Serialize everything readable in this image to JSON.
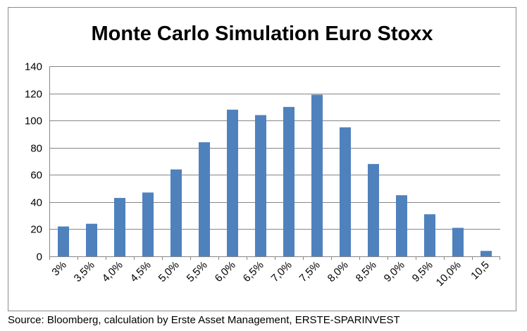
{
  "chart_data": {
    "type": "bar",
    "title": "Monte Carlo Simulation Euro Stoxx",
    "xlabel": "",
    "ylabel": "",
    "categories": [
      "3%",
      "3,5%",
      "4,0%",
      "4,5%",
      "5,0%",
      "5,5%",
      "6,0%",
      "6,5%",
      "7,0%",
      "7,5%",
      "8,0%",
      "8,5%",
      "9,0%",
      "9,5%",
      "10,0%",
      "10,5"
    ],
    "values": [
      22,
      24,
      43,
      47,
      64,
      84,
      108,
      104,
      110,
      119,
      95,
      68,
      45,
      31,
      21,
      4
    ],
    "ylim": [
      0,
      140
    ],
    "yticks": [
      0,
      20,
      40,
      60,
      80,
      100,
      120,
      140
    ],
    "grid": true,
    "legend": "none",
    "bar_color": "#4f81bd",
    "grid_color": "#868686"
  },
  "source_note": "Source: Bloomberg, calculation by Erste Asset Management, ERSTE-SPARINVEST"
}
